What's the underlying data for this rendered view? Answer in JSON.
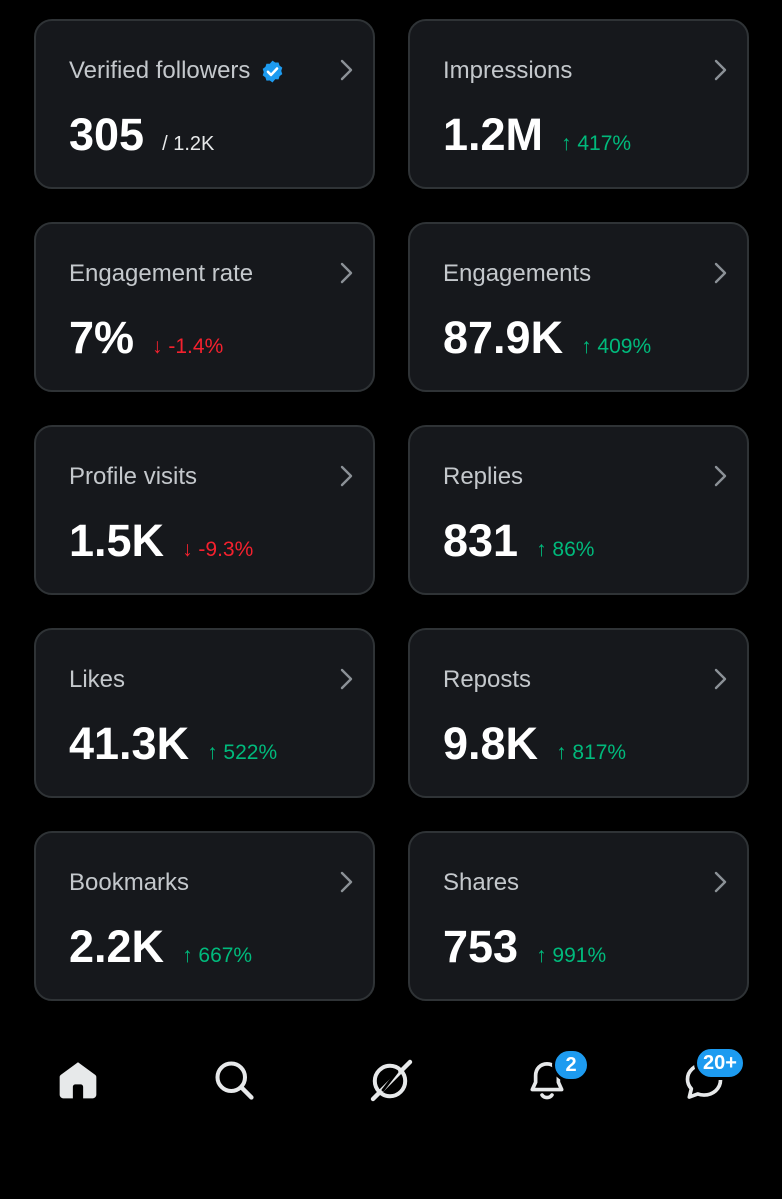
{
  "colors": {
    "background": "#000000",
    "card_bg": "#16181c",
    "card_border": "#2f3336",
    "up": "#00ba7c",
    "down": "#f4212e",
    "accent": "#1d9bf0"
  },
  "cards": [
    {
      "title": "Verified followers",
      "value": "305",
      "sub": "/ 1.2K",
      "change": "",
      "direction": "",
      "verified_icon": "verified-badge-icon"
    },
    {
      "title": "Impressions",
      "value": "1.2M",
      "sub": "",
      "change": "↑ 417%",
      "direction": "up"
    },
    {
      "title": "Engagement rate",
      "value": "7%",
      "sub": "",
      "change": "↓ -1.4%",
      "direction": "down"
    },
    {
      "title": "Engagements",
      "value": "87.9K",
      "sub": "",
      "change": "↑ 409%",
      "direction": "up"
    },
    {
      "title": "Profile visits",
      "value": "1.5K",
      "sub": "",
      "change": "↓ -9.3%",
      "direction": "down"
    },
    {
      "title": "Replies",
      "value": "831",
      "sub": "",
      "change": "↑ 86%",
      "direction": "up"
    },
    {
      "title": "Likes",
      "value": "41.3K",
      "sub": "",
      "change": "↑ 522%",
      "direction": "up"
    },
    {
      "title": "Reposts",
      "value": "9.8K",
      "sub": "",
      "change": "↑ 817%",
      "direction": "up"
    },
    {
      "title": "Bookmarks",
      "value": "2.2K",
      "sub": "",
      "change": "↑ 667%",
      "direction": "up"
    },
    {
      "title": "Shares",
      "value": "753",
      "sub": "",
      "change": "↑ 991%",
      "direction": "up"
    }
  ],
  "nav": {
    "items": [
      {
        "icon": "home-icon"
      },
      {
        "icon": "search-icon"
      },
      {
        "icon": "grok-icon"
      },
      {
        "icon": "bell-icon",
        "badge": "2"
      },
      {
        "icon": "messages-icon",
        "badge": "20+"
      }
    ]
  }
}
